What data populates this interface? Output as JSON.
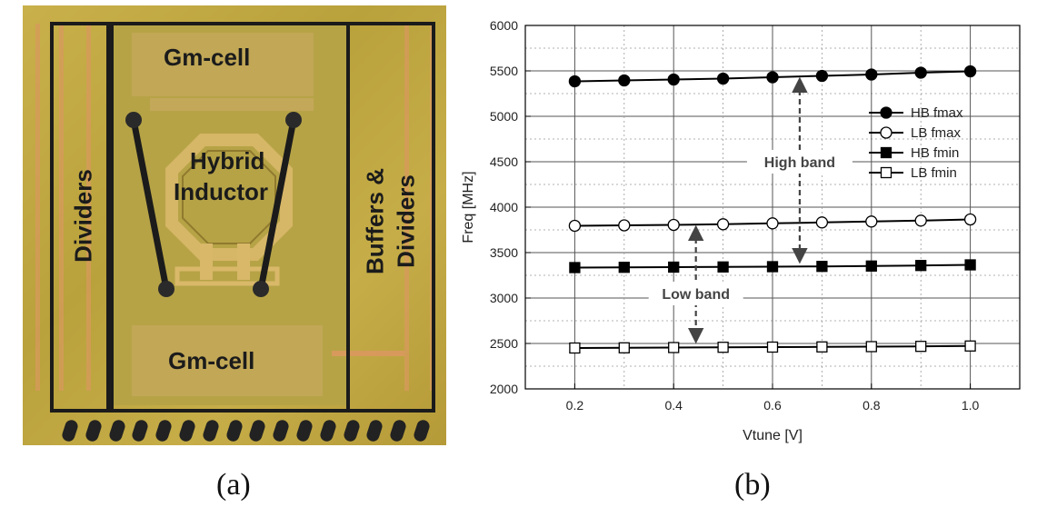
{
  "panels": {
    "a": {
      "caption": "(a)",
      "labels": {
        "gm_top": "Gm-cell",
        "gm_bottom": "Gm-cell",
        "inductor_line1": "Hybrid",
        "inductor_line2": "Inductor",
        "dividers_left": "Dividers",
        "buffers_right_line1": "Buffers &",
        "buffers_right_line2": "Dividers"
      }
    },
    "b": {
      "caption": "(b)"
    }
  },
  "chart_data": {
    "type": "line",
    "xlabel": "Vtune [V]",
    "ylabel": "Freq [MHz]",
    "xlim": [
      0.1,
      1.1
    ],
    "ylim": [
      2000,
      6000
    ],
    "xticks": [
      0.2,
      0.4,
      0.6,
      0.8,
      1.0
    ],
    "yticks": [
      2000,
      2500,
      3000,
      3500,
      4000,
      4500,
      5000,
      5500,
      6000
    ],
    "grid": true,
    "legend_position": "top-right",
    "x": [
      0.2,
      0.3,
      0.4,
      0.5,
      0.6,
      0.7,
      0.8,
      0.9,
      1.0
    ],
    "series": [
      {
        "name": "HB fmax",
        "marker": "filled-circle",
        "values": [
          5385,
          5395,
          5405,
          5415,
          5430,
          5445,
          5460,
          5480,
          5495
        ]
      },
      {
        "name": "LB fmax",
        "marker": "open-circle",
        "values": [
          3795,
          3800,
          3805,
          3812,
          3822,
          3832,
          3842,
          3852,
          3865
        ]
      },
      {
        "name": "HB fmin",
        "marker": "filled-square",
        "values": [
          3335,
          3338,
          3340,
          3342,
          3345,
          3348,
          3352,
          3358,
          3365
        ]
      },
      {
        "name": "LB fmin",
        "marker": "open-square",
        "values": [
          2450,
          2452,
          2455,
          2458,
          2460,
          2462,
          2465,
          2468,
          2472
        ]
      }
    ],
    "annotations": [
      {
        "text": "High band"
      },
      {
        "text": "Low band"
      }
    ]
  }
}
